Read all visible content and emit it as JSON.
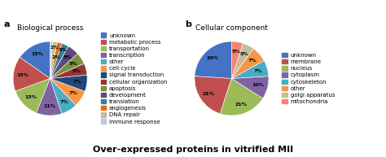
{
  "title": "Over-expressed proteins in vitrified MII",
  "chart_data": [
    {
      "type": "pie",
      "title": "Biological process",
      "annotations": [
        {
          "text": "a"
        }
      ],
      "labels": [
        "unknown",
        "metabolic process",
        "transportation",
        "transcription",
        "other",
        "cell cycle",
        "signal transduction",
        "cellular organization",
        "apoptosis",
        "development",
        "translation",
        "angiogenesis",
        "DNA repair",
        "immune response"
      ],
      "values": [
        15,
        15,
        13,
        11,
        7,
        7,
        7,
        5,
        5,
        5,
        3,
        2,
        2,
        1
      ],
      "value_labels": [
        "15%",
        "15%",
        "13%",
        "11%",
        "7%",
        "7%",
        "7%",
        "5%",
        "5%",
        "5%",
        "3%",
        "2%",
        "2%",
        null
      ],
      "colors": [
        "#4472C4",
        "#C0504D",
        "#9BBB59",
        "#8064A2",
        "#4BACC6",
        "#F79646",
        "#1F497D",
        "#943634",
        "#76923C",
        "#604A7B",
        "#31849B",
        "#E36C09",
        "#C4BD97",
        "#B8CCE4"
      ],
      "data_labels": true,
      "legend": "center left"
    },
    {
      "type": "pie",
      "title": "Cellular component",
      "annotations": [
        {
          "text": "b"
        }
      ],
      "labels": [
        "unknown",
        "membrane",
        "nucleus",
        "cytoplasm",
        "cytoskeleton",
        "other",
        "golgi apparatus",
        "mitochondria"
      ],
      "values": [
        24,
        21,
        21,
        10,
        7,
        7,
        5,
        5
      ],
      "value_labels": [
        "24%",
        "21%",
        "21%",
        "10%",
        "7%",
        "7%",
        "5%",
        "5%"
      ],
      "colors": [
        "#4472C4",
        "#C0504D",
        "#9BBB59",
        "#8064A2",
        "#4BACC6",
        "#F79646",
        "#C4BD97",
        "#FA8072"
      ],
      "data_labels": true,
      "legend": "center left"
    }
  ]
}
